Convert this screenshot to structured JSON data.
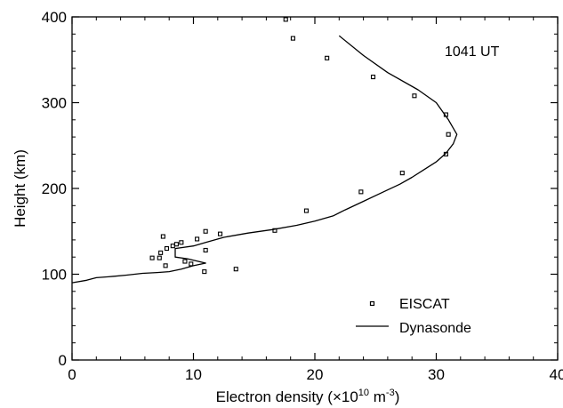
{
  "chart_data": {
    "type": "scatter",
    "annotation": "1041 UT",
    "xlabel_main": "Electron density (×10",
    "xlabel_exp": "10",
    "xlabel_unit": " m",
    "xlabel_unit_exp": "-3",
    "xlabel_close": ")",
    "ylabel": "Height (km)",
    "xlim": [
      0,
      40
    ],
    "ylim": [
      0,
      400
    ],
    "x_ticks": [
      0,
      10,
      20,
      30,
      40
    ],
    "y_ticks": [
      0,
      100,
      200,
      300,
      400
    ],
    "grid": false,
    "legend_position": "bottom-right",
    "series": [
      {
        "name": "EISCAT",
        "kind": "points",
        "marker": "open-square",
        "x": [
          17.6,
          18.2,
          21.0,
          24.8,
          28.2,
          30.8,
          31.0,
          30.8,
          27.2,
          23.8,
          19.3,
          16.7,
          13.5,
          12.2,
          11.0,
          11.0,
          10.9,
          10.3,
          9.8,
          9.3,
          9.0,
          8.6,
          8.3,
          7.8,
          7.5,
          7.3,
          7.2,
          6.6,
          7.7
        ],
        "y": [
          397,
          375,
          352,
          330,
          308,
          286,
          263,
          240,
          218,
          196,
          174,
          151,
          106,
          147,
          150,
          128,
          103,
          141,
          112,
          115,
          137,
          135,
          133,
          130,
          144,
          125,
          119,
          119,
          110
        ]
      },
      {
        "name": "Dynasonde",
        "kind": "line",
        "x": [
          0,
          1.2,
          2.0,
          3.0,
          4.5,
          5.8,
          7.0,
          8.0,
          9.0,
          10.0,
          11.0,
          9.5,
          8.5,
          8.5,
          10.0,
          11.0,
          12.5,
          14.5,
          16.5,
          18.5,
          20.0,
          21.5,
          22.5,
          24.0,
          25.5,
          27.0,
          28.0,
          29.0,
          30.0,
          30.8,
          31.4,
          31.7,
          31.0,
          30.0,
          28.5,
          26.0,
          24.0,
          22.0
        ],
        "y": [
          90,
          93,
          96,
          97,
          99,
          101,
          102,
          103,
          106,
          110,
          113,
          118,
          120,
          130,
          133,
          137,
          143,
          148,
          152,
          157,
          162,
          168,
          175,
          185,
          195,
          205,
          213,
          222,
          231,
          241,
          252,
          263,
          280,
          300,
          315,
          335,
          355,
          378
        ]
      }
    ]
  }
}
